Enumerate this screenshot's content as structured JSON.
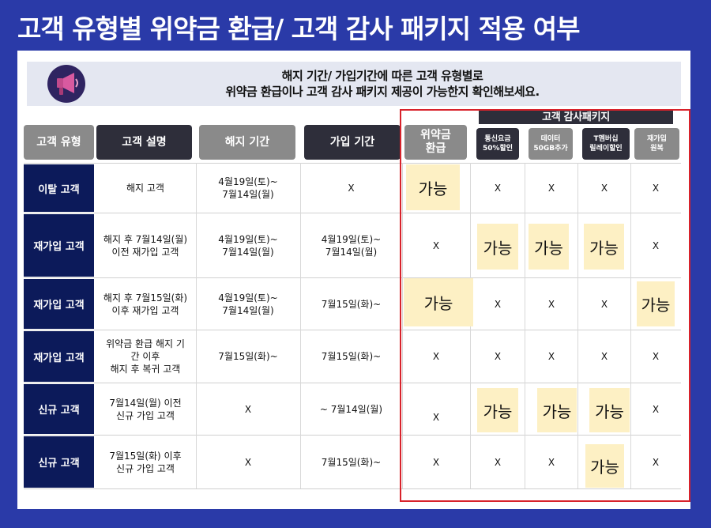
{
  "title": "고객 유형별 위약금 환급/ 고객 감사 패키지 적용 여부",
  "banner": {
    "line1": "해지 기간/ 가입기간에 따른 고객 유형별로",
    "line2": "위약금 환급이나 고객 감사 패키지 제공이 가능한지 확인해보세요."
  },
  "headers": {
    "type": "고객 유형",
    "desc": "고객 설명",
    "cancel_period": "해지 기간",
    "join_period": "가입 기간",
    "refund": "위약금\n환급",
    "package_group": "고객 감사패키지",
    "pkg1": "통신요금\n50%할인",
    "pkg2": "데이터\n50GB추가",
    "pkg3": "T멤버십\n릴레이할인",
    "pkg4": "재가입\n원복"
  },
  "rows": [
    {
      "type": "이탈 고객",
      "desc": "해지 고객",
      "cancel": "4월19일(토)~\n7월14일(월)",
      "join": "X",
      "refund": "가능",
      "p1": "X",
      "p2": "X",
      "p3": "X",
      "p4": "X"
    },
    {
      "type": "재가입 고객",
      "desc": "해지 후 7월14일(월)\n이전 재가입 고객",
      "cancel": "4월19일(토)~\n7월14일(월)",
      "join": "4월19일(토)~\n7월14일(월)",
      "refund": "X",
      "p1": "가능",
      "p2": "가능",
      "p3": "가능",
      "p4": "X"
    },
    {
      "type": "재가입 고객",
      "desc": "해지 후 7월15일(화)\n이후 재가입 고객",
      "cancel": "4월19일(토)~\n7월14일(월)",
      "join": "7월15일(화)~",
      "refund": "가능",
      "p1": "X",
      "p2": "X",
      "p3": "X",
      "p4": "가능"
    },
    {
      "type": "재가입 고객",
      "desc": "위약금 환급 해지 기\n간 이후\n해지 후 복귀 고객",
      "cancel": "7월15일(화)~",
      "join": "7월15일(화)~",
      "refund": "X",
      "p1": "X",
      "p2": "X",
      "p3": "X",
      "p4": "X"
    },
    {
      "type": "신규 고객",
      "desc": "7월14일(월) 이전\n신규 가입 고객",
      "cancel": "X",
      "join": "~ 7월14일(월)",
      "refund": "X",
      "p1": "가능",
      "p2": "가능",
      "p3": "가능",
      "p4": "X"
    },
    {
      "type": "신규 고객",
      "desc": "7월15일(화) 이후\n신규 가입 고객",
      "cancel": "X",
      "join": "7월15일(화)~",
      "refund": "X",
      "p1": "X",
      "p2": "X",
      "p3": "가능",
      "p4": "X"
    }
  ],
  "colors": {
    "background": "#2a3aa8",
    "row_label": "#0c1a5a",
    "highlight": "#fdf0c4",
    "selection_border": "#d8222b"
  },
  "icons": {
    "banner": "megaphone-icon"
  }
}
